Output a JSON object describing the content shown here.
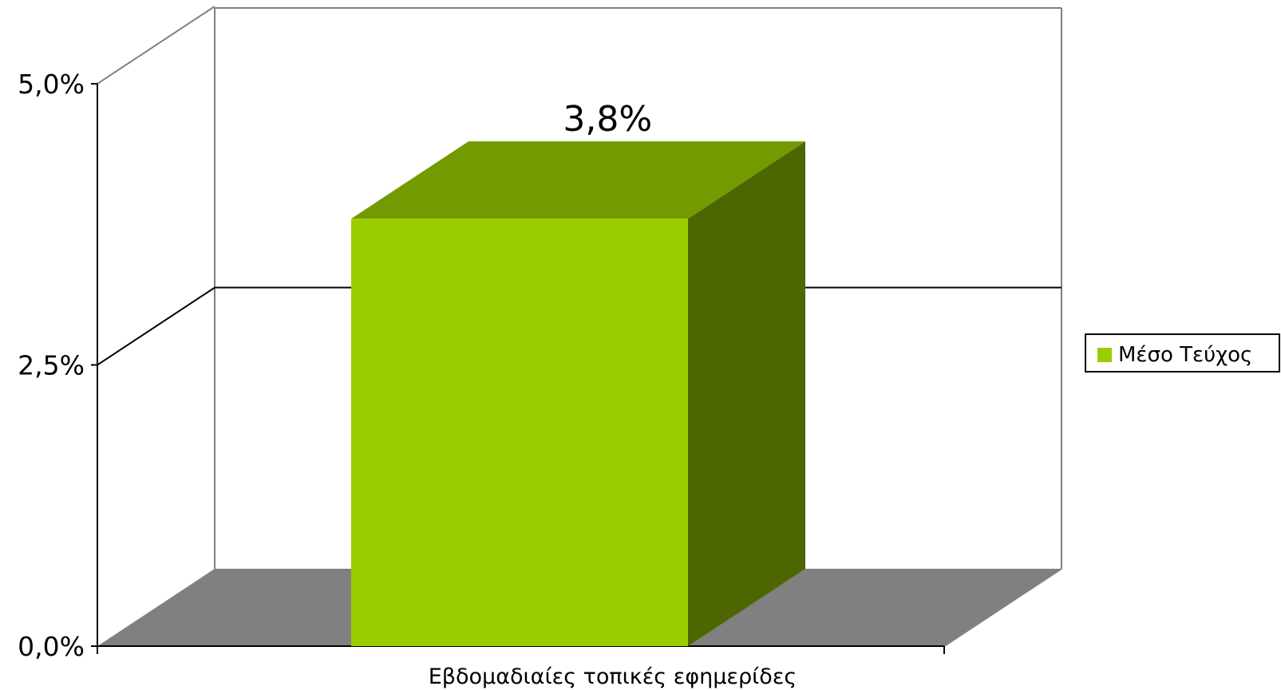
{
  "chart_data": {
    "type": "bar",
    "categories": [
      "Εβδομαδιαίες τοπικές εφημερίδες"
    ],
    "series": [
      {
        "name": "Μέσο Τεύχος",
        "values": [
          3.8
        ]
      }
    ],
    "value_labels": [
      "3,8%"
    ],
    "y_ticks": [
      {
        "value": 0.0,
        "label": "0,0%"
      },
      {
        "value": 2.5,
        "label": "2,5%"
      },
      {
        "value": 5.0,
        "label": "5,0%"
      }
    ],
    "ylim": [
      0,
      5
    ],
    "grid": true,
    "three_d": true,
    "legend_position": "right",
    "colors": {
      "bar_front": "#9ACD00",
      "bar_top": "#739A00",
      "bar_side": "#4D6600",
      "floor": "#808080",
      "wall_lines": "#808080",
      "axis": "#000000"
    }
  }
}
